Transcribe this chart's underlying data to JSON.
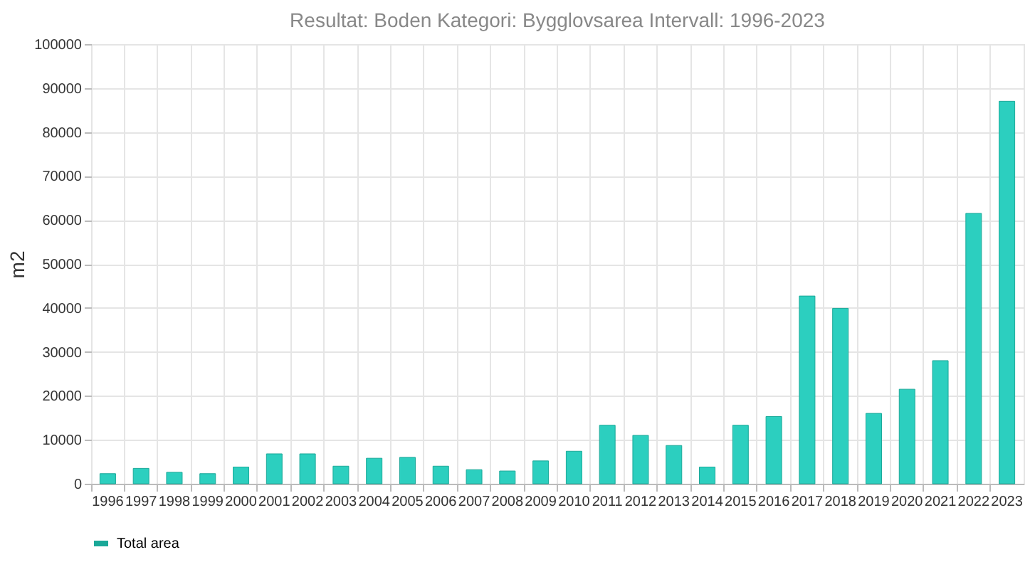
{
  "chart_data": {
    "type": "bar",
    "title": "Resultat: Boden Kategori: Bygglovsarea Intervall: 1996-2023",
    "ylabel": "m2",
    "categories": [
      "1996",
      "1997",
      "1998",
      "1999",
      "2000",
      "2001",
      "2002",
      "2003",
      "2004",
      "2005",
      "2006",
      "2007",
      "2008",
      "2009",
      "2010",
      "2011",
      "2012",
      "2013",
      "2014",
      "2015",
      "2016",
      "2017",
      "2018",
      "2019",
      "2020",
      "2021",
      "2022",
      "2023"
    ],
    "series": [
      {
        "name": "Total area",
        "color": "#2ccfbf",
        "values": [
          2300,
          3500,
          2600,
          2300,
          3800,
          6800,
          6800,
          4000,
          5800,
          6000,
          4000,
          3200,
          2900,
          5200,
          7400,
          13300,
          11000,
          8700,
          3800,
          13300,
          15300,
          42700,
          39900,
          16000,
          21500,
          28000,
          61500,
          87000
        ]
      }
    ],
    "ylim": [
      0,
      100000
    ],
    "yticks": [
      0,
      10000,
      20000,
      30000,
      40000,
      50000,
      60000,
      70000,
      80000,
      90000,
      100000
    ],
    "grid": true,
    "legend": "bottom"
  }
}
